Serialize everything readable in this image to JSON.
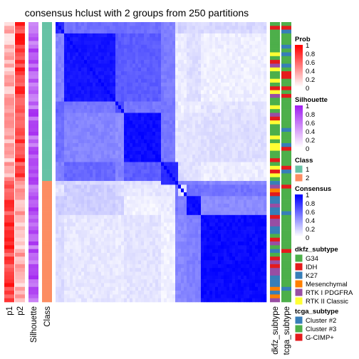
{
  "chart_data": {
    "type": "heatmap",
    "title": "consensus hclust with 2 groups from 250 partitions",
    "row_annotations": [
      "p1",
      "p2",
      "Silhouette",
      "Class"
    ],
    "column_annotations": [
      "dkfz_subtype",
      "tcga_subtype"
    ],
    "groups": [
      {
        "class": "1",
        "size": 0.565
      },
      {
        "class": "2",
        "size": 0.435
      }
    ],
    "legends": [
      {
        "title": "Prob",
        "type": "continuous",
        "labels": [
          "1",
          "0.8",
          "0.6",
          "0.4",
          "0.2",
          "0"
        ],
        "colors": [
          "#ff0000",
          "#ffffff"
        ]
      },
      {
        "title": "Silhouette",
        "type": "continuous",
        "labels": [
          "1",
          "0.8",
          "0.6",
          "0.4",
          "0.2",
          "0"
        ],
        "colors": [
          "#a020f0",
          "#ffffff"
        ]
      },
      {
        "title": "Class",
        "type": "discrete",
        "items": [
          {
            "label": "1",
            "color": "#66c2a5"
          },
          {
            "label": "2",
            "color": "#fc8d62"
          }
        ]
      },
      {
        "title": "Consensus",
        "type": "continuous",
        "labels": [
          "1",
          "0.8",
          "0.6",
          "0.4",
          "0.2",
          "0"
        ],
        "colors": [
          "#0000ff",
          "#ffffff"
        ]
      },
      {
        "title": "dkfz_subtype",
        "type": "discrete",
        "items": [
          {
            "label": "G34",
            "color": "#4daf4a"
          },
          {
            "label": "IDH",
            "color": "#e41a1c"
          },
          {
            "label": "K27",
            "color": "#377eb8"
          },
          {
            "label": "Mesenchymal",
            "color": "#ff7f00"
          },
          {
            "label": "RTK I PDGFRA",
            "color": "#984ea3"
          },
          {
            "label": "RTK II Classic",
            "color": "#ffff33"
          }
        ]
      },
      {
        "title": "tcga_subtype",
        "type": "discrete",
        "items": [
          {
            "label": "Cluster #2",
            "color": "#377eb8"
          },
          {
            "label": "Cluster #3",
            "color": "#4daf4a"
          },
          {
            "label": "G-CIMP+",
            "color": "#e41a1c"
          }
        ]
      }
    ]
  }
}
